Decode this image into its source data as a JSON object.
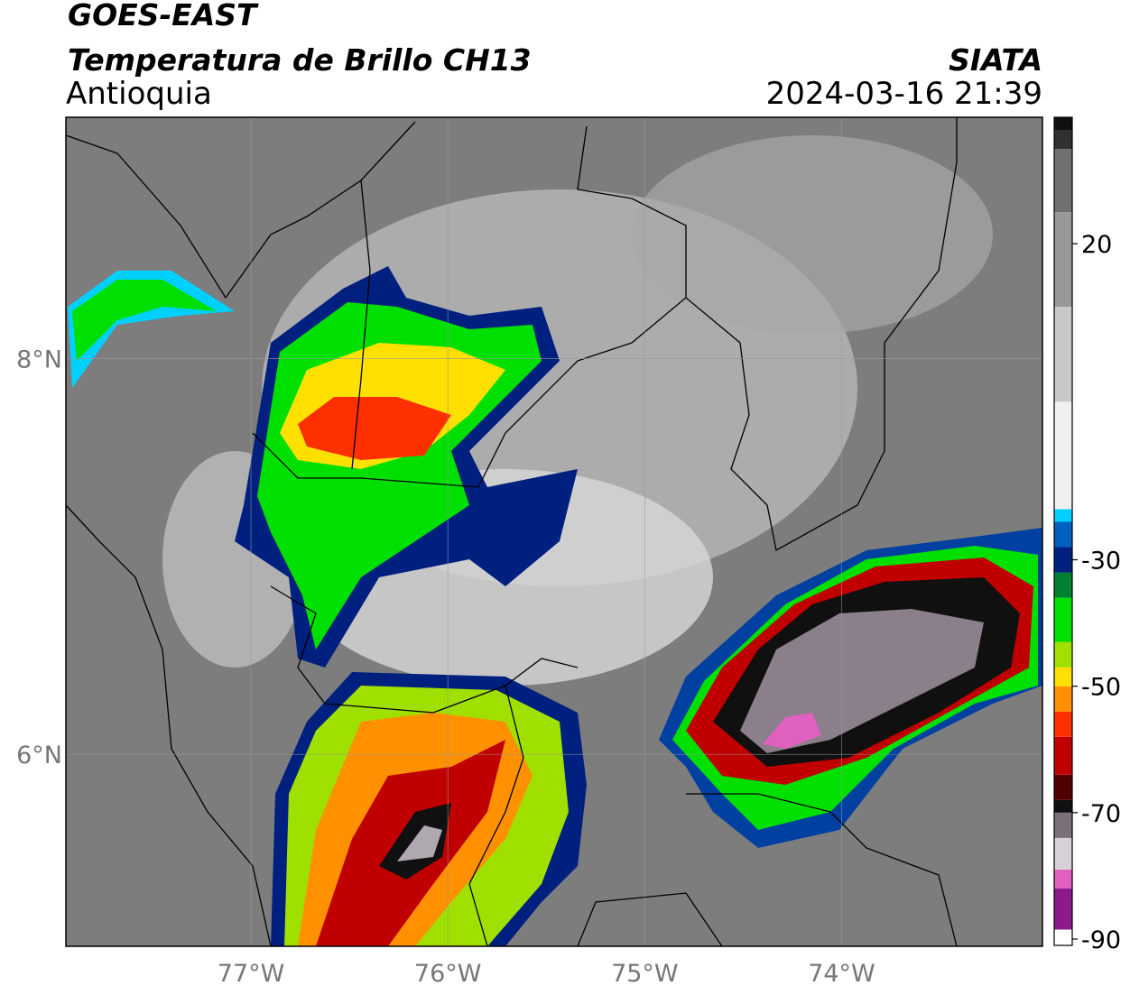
{
  "header": {
    "title": "GOES-EAST",
    "subtitle": "Temperatura de Brillo CH13",
    "region": "Antioquia",
    "source": "SIATA",
    "datetime": "2024-03-16 21:39"
  },
  "map": {
    "lon_range": [
      -77.94,
      -72.98
    ],
    "lat_range": [
      5.03,
      9.22
    ],
    "lon_ticks": [
      {
        "value": -77,
        "label": "77°W"
      },
      {
        "value": -76,
        "label": "76°W"
      },
      {
        "value": -75,
        "label": "75°W"
      },
      {
        "value": -74,
        "label": "74°W"
      }
    ],
    "lat_ticks": [
      {
        "value": 8,
        "label": "8°N"
      },
      {
        "value": 6,
        "label": "6°N"
      }
    ]
  },
  "colorbar": {
    "range": [
      -91,
      40
    ],
    "ticks": [
      20,
      -30,
      -50,
      -70,
      -90
    ],
    "stops": [
      {
        "value": -91,
        "color": "#ffffff"
      },
      {
        "value": -88.5,
        "color": "#8b1a8b"
      },
      {
        "value": -82,
        "color": "#e060c0"
      },
      {
        "value": -79,
        "color": "#d8d0d8"
      },
      {
        "value": -74,
        "color": "#7a707a"
      },
      {
        "value": -70,
        "color": "#101010"
      },
      {
        "value": -68,
        "color": "#500000"
      },
      {
        "value": -64,
        "color": "#c00000"
      },
      {
        "value": -58,
        "color": "#ff3000"
      },
      {
        "value": -54,
        "color": "#ff9000"
      },
      {
        "value": -50,
        "color": "#ffe000"
      },
      {
        "value": -47,
        "color": "#a0e000"
      },
      {
        "value": -43,
        "color": "#00e000"
      },
      {
        "value": -36,
        "color": "#008030"
      },
      {
        "value": -32,
        "color": "#002080"
      },
      {
        "value": -28,
        "color": "#0060c0"
      },
      {
        "value": -24,
        "color": "#00d0ff"
      },
      {
        "value": -22,
        "color": "#f0f0f0"
      },
      {
        "value": -5,
        "color": "#c8c8c8"
      },
      {
        "value": 10,
        "color": "#989898"
      },
      {
        "value": 25,
        "color": "#707070"
      },
      {
        "value": 35,
        "color": "#303030"
      },
      {
        "value": 38,
        "color": "#101010"
      }
    ]
  }
}
